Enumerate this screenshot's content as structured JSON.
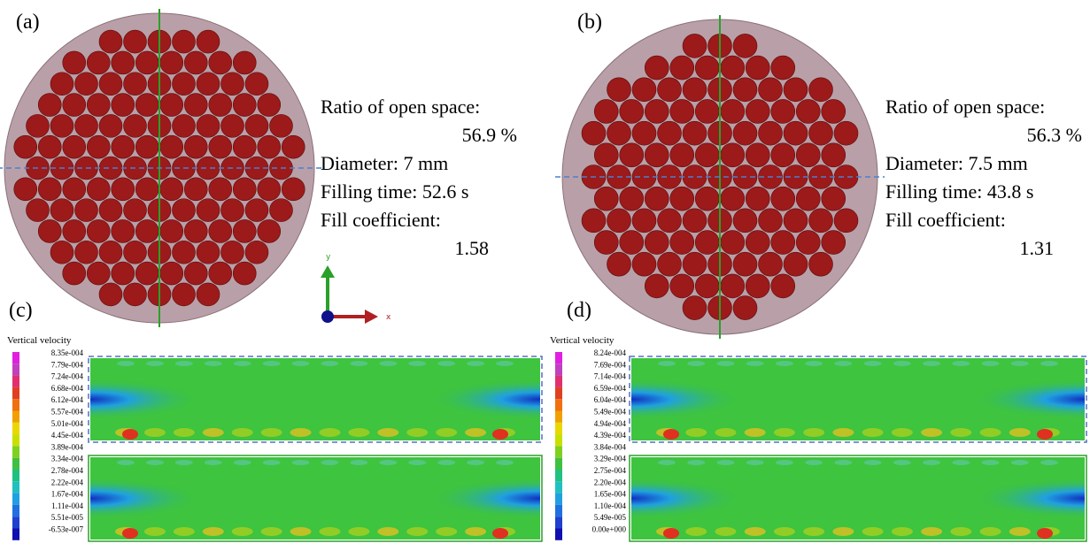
{
  "top_panels": [
    {
      "label": "(a)",
      "lines": [
        "Ratio of open space:",
        "56.9 %",
        "Diameter: 7 mm",
        "Filling time: 52.6 s",
        "Fill coefficient:",
        "1.58"
      ]
    },
    {
      "label": "(b)",
      "lines": [
        "Ratio of open space:",
        "56.3 %",
        "Diameter: 7.5 mm",
        "Filling time: 43.8 s",
        "Fill coefficient:",
        "1.31"
      ]
    }
  ],
  "axis_triad": {
    "y": "y",
    "x": "x"
  },
  "bottom_panels": [
    {
      "label": "(c)",
      "title": "Vertical velocity",
      "ticks": [
        "8.35e-004",
        "7.79e-004",
        "7.24e-004",
        "6.68e-004",
        "6.12e-004",
        "5.57e-004",
        "5.01e-004",
        "4.45e-004",
        "3.89e-004",
        "3.34e-004",
        "2.78e-004",
        "2.22e-004",
        "1.67e-004",
        "1.11e-004",
        "5.51e-005",
        "-6.53e-007"
      ]
    },
    {
      "label": "(d)",
      "title": "Vertical velocity",
      "ticks": [
        "8.24e-004",
        "7.69e-004",
        "7.14e-004",
        "6.59e-004",
        "6.04e-004",
        "5.49e-004",
        "4.94e-004",
        "4.39e-004",
        "3.84e-004",
        "3.29e-004",
        "2.75e-004",
        "2.20e-004",
        "1.65e-004",
        "1.10e-004",
        "5.49e-005",
        "0.00e+000"
      ]
    }
  ]
}
